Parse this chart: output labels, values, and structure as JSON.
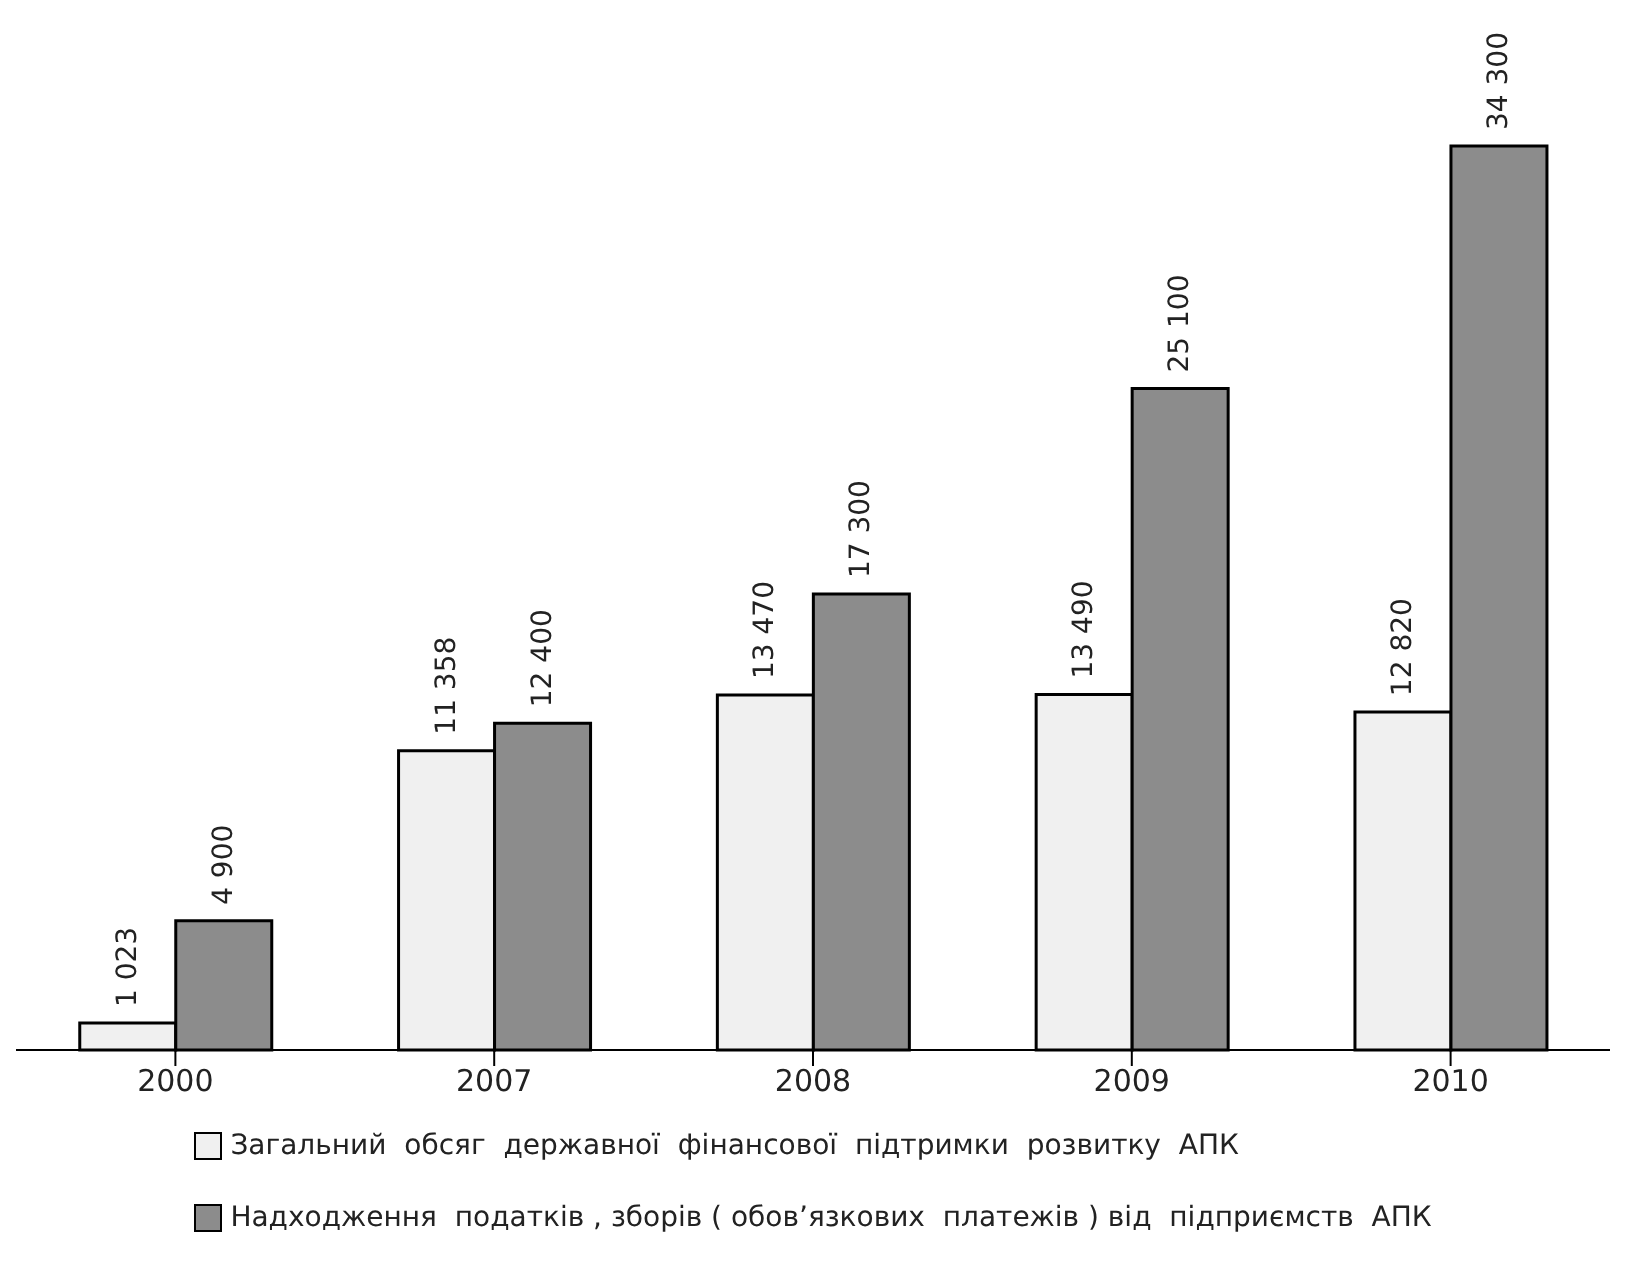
{
  "chart_data": {
    "type": "bar",
    "categories": [
      "2000",
      "2007",
      "2008",
      "2009",
      "2010"
    ],
    "series": [
      {
        "name": "Загальний  обсяг  державної  фінансової  підтримки  розвитку  АПК",
        "color": "#f0f0f0",
        "values": [
          1023,
          11358,
          13470,
          13490,
          12820
        ],
        "value_labels": [
          "1 023",
          "11 358",
          "13 470",
          "13 490",
          "12 820"
        ]
      },
      {
        "name": "Надходження  податків , зборів ( обов’язкових  платежів ) від  підприємств  АПК",
        "color": "#8c8c8c",
        "values": [
          4900,
          12400,
          17300,
          25100,
          34300
        ],
        "value_labels": [
          "4 900",
          "12 400",
          "17 300",
          "25 100",
          "34 300"
        ]
      }
    ],
    "legend": "bottom"
  }
}
